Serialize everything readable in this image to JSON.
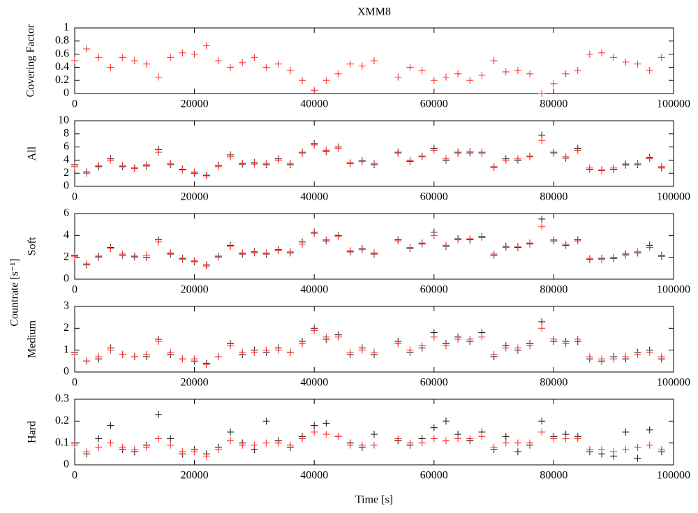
{
  "chart_data": [
    {
      "type": "scatter",
      "title": "XMM8",
      "ylabel": "Covering Factor",
      "x": [
        0,
        2000,
        4000,
        6000,
        8000,
        10000,
        12000,
        14000,
        16000,
        18000,
        20000,
        22000,
        24000,
        26000,
        28000,
        30000,
        32000,
        34000,
        36000,
        38000,
        40000,
        42000,
        44000,
        46000,
        48000,
        50000,
        54000,
        56000,
        58000,
        60000,
        62000,
        64000,
        66000,
        68000,
        70000,
        72000,
        74000,
        76000,
        78000,
        80000,
        82000,
        84000,
        86000,
        88000,
        90000,
        92000,
        94000,
        96000,
        98000
      ],
      "series": [
        {
          "color": "#ff3333",
          "values": [
            0.5,
            0.68,
            0.55,
            0.4,
            0.55,
            0.5,
            0.45,
            0.25,
            0.55,
            0.62,
            0.6,
            0.73,
            0.5,
            0.4,
            0.47,
            0.55,
            0.4,
            0.45,
            0.35,
            0.2,
            0.05,
            0.2,
            0.3,
            0.45,
            0.42,
            0.5,
            0.25,
            0.4,
            0.35,
            0.2,
            0.25,
            0.3,
            0.2,
            0.28,
            0.5,
            0.33,
            0.35,
            0.3,
            0.0,
            0.15,
            0.3,
            0.35,
            0.6,
            0.62,
            0.55,
            0.48,
            0.45,
            0.35,
            0.55
          ]
        }
      ],
      "xlim": [
        0,
        100000
      ],
      "xticks": [
        0,
        20000,
        40000,
        60000,
        80000,
        100000
      ],
      "ylim": [
        0,
        1
      ],
      "yticks": [
        0,
        0.2,
        0.4,
        0.6,
        0.8,
        1
      ]
    },
    {
      "type": "scatter",
      "ylabel": "All",
      "x": [
        0,
        2000,
        4000,
        6000,
        8000,
        10000,
        12000,
        14000,
        16000,
        18000,
        20000,
        22000,
        24000,
        26000,
        28000,
        30000,
        32000,
        34000,
        36000,
        38000,
        40000,
        42000,
        44000,
        46000,
        48000,
        50000,
        54000,
        56000,
        58000,
        60000,
        62000,
        64000,
        66000,
        68000,
        70000,
        72000,
        74000,
        76000,
        78000,
        80000,
        82000,
        84000,
        86000,
        88000,
        90000,
        92000,
        94000,
        96000,
        98000
      ],
      "series": [
        {
          "color": "#222222",
          "values": [
            3.3,
            2.2,
            3.0,
            4.2,
            3.0,
            2.8,
            3.1,
            5.6,
            3.3,
            2.6,
            2.0,
            1.7,
            3.2,
            4.8,
            3.4,
            3.6,
            3.3,
            4.2,
            3.3,
            5.2,
            6.5,
            5.3,
            6.0,
            3.5,
            3.9,
            3.3,
            5.2,
            3.8,
            4.6,
            5.8,
            4.0,
            5.2,
            5.1,
            5.2,
            2.9,
            4.2,
            4.0,
            4.6,
            7.8,
            5.2,
            4.3,
            5.8,
            2.6,
            2.5,
            2.6,
            3.4,
            3.3,
            4.4,
            2.8
          ]
        },
        {
          "color": "#ff3333",
          "values": [
            3.0,
            2.0,
            3.2,
            4.0,
            3.2,
            2.7,
            3.3,
            5.2,
            3.5,
            2.5,
            2.2,
            1.6,
            3.0,
            4.5,
            3.5,
            3.4,
            3.5,
            4.0,
            3.5,
            5.0,
            6.3,
            5.5,
            5.8,
            3.6,
            3.8,
            3.5,
            5.0,
            4.0,
            4.5,
            5.5,
            4.2,
            5.0,
            5.3,
            5.0,
            3.0,
            4.0,
            4.2,
            4.5,
            7.0,
            5.0,
            4.5,
            5.5,
            2.8,
            2.4,
            2.8,
            3.2,
            3.5,
            4.2,
            3.0
          ]
        }
      ],
      "xlim": [
        0,
        100000
      ],
      "xticks": [
        0,
        20000,
        40000,
        60000,
        80000,
        100000
      ],
      "ylim": [
        0,
        10
      ],
      "yticks": [
        0,
        2,
        4,
        6,
        8,
        10
      ]
    },
    {
      "type": "scatter",
      "ylabel": "Soft",
      "shared_ylabel": "Countrate [s⁻¹]",
      "x": [
        0,
        2000,
        4000,
        6000,
        8000,
        10000,
        12000,
        14000,
        16000,
        18000,
        20000,
        22000,
        24000,
        26000,
        28000,
        30000,
        32000,
        34000,
        36000,
        38000,
        40000,
        42000,
        44000,
        46000,
        48000,
        50000,
        54000,
        56000,
        58000,
        60000,
        62000,
        64000,
        66000,
        68000,
        70000,
        72000,
        74000,
        76000,
        78000,
        80000,
        82000,
        84000,
        86000,
        88000,
        90000,
        92000,
        94000,
        96000,
        98000
      ],
      "series": [
        {
          "color": "#222222",
          "values": [
            2.2,
            1.3,
            2.1,
            2.9,
            2.2,
            2.1,
            2.0,
            3.6,
            2.3,
            1.9,
            1.6,
            1.3,
            2.1,
            3.1,
            2.3,
            2.5,
            2.3,
            2.7,
            2.4,
            3.4,
            4.3,
            3.5,
            4.0,
            2.5,
            2.8,
            2.3,
            3.6,
            2.8,
            3.3,
            4.3,
            3.0,
            3.7,
            3.6,
            3.9,
            2.2,
            3.0,
            2.9,
            3.3,
            5.5,
            3.5,
            3.1,
            3.6,
            1.8,
            1.9,
            1.9,
            2.3,
            2.4,
            3.1,
            2.1
          ]
        },
        {
          "color": "#ff3333",
          "values": [
            2.1,
            1.4,
            2.0,
            2.8,
            2.3,
            2.0,
            2.2,
            3.4,
            2.4,
            1.8,
            1.7,
            1.2,
            2.0,
            3.0,
            2.4,
            2.4,
            2.4,
            2.6,
            2.5,
            3.2,
            4.2,
            3.6,
            3.9,
            2.6,
            2.7,
            2.4,
            3.5,
            2.9,
            3.2,
            4.0,
            3.1,
            3.6,
            3.7,
            3.8,
            2.3,
            2.9,
            3.0,
            3.2,
            4.8,
            3.6,
            3.2,
            3.5,
            1.9,
            1.8,
            2.0,
            2.2,
            2.5,
            2.9,
            2.2
          ]
        }
      ],
      "xlim": [
        0,
        100000
      ],
      "xticks": [
        0,
        20000,
        40000,
        60000,
        80000,
        100000
      ],
      "ylim": [
        0,
        6
      ],
      "yticks": [
        0,
        2,
        4,
        6
      ]
    },
    {
      "type": "scatter",
      "ylabel": "Medium",
      "x": [
        0,
        2000,
        4000,
        6000,
        8000,
        10000,
        12000,
        14000,
        16000,
        18000,
        20000,
        22000,
        24000,
        26000,
        28000,
        30000,
        32000,
        34000,
        36000,
        38000,
        40000,
        42000,
        44000,
        46000,
        48000,
        50000,
        54000,
        56000,
        58000,
        60000,
        62000,
        64000,
        66000,
        68000,
        70000,
        72000,
        74000,
        76000,
        78000,
        80000,
        82000,
        84000,
        86000,
        88000,
        90000,
        92000,
        94000,
        96000,
        98000
      ],
      "series": [
        {
          "color": "#222222",
          "values": [
            0.9,
            0.5,
            0.6,
            1.1,
            0.8,
            0.7,
            0.7,
            1.5,
            0.8,
            0.6,
            0.5,
            0.4,
            0.7,
            1.3,
            0.8,
            1.0,
            0.9,
            1.1,
            0.9,
            1.4,
            2.0,
            1.5,
            1.7,
            0.8,
            1.1,
            0.8,
            1.4,
            0.9,
            1.1,
            1.8,
            1.3,
            1.6,
            1.4,
            1.8,
            0.7,
            1.2,
            1.0,
            1.3,
            2.3,
            1.4,
            1.4,
            1.4,
            0.6,
            0.5,
            0.7,
            0.6,
            0.9,
            1.0,
            0.6
          ]
        },
        {
          "color": "#ff3333",
          "values": [
            0.8,
            0.5,
            0.7,
            1.0,
            0.8,
            0.7,
            0.8,
            1.4,
            0.9,
            0.6,
            0.6,
            0.35,
            0.7,
            1.2,
            0.9,
            0.9,
            1.0,
            1.0,
            0.9,
            1.3,
            1.9,
            1.6,
            1.6,
            0.9,
            1.0,
            0.9,
            1.3,
            1.0,
            1.2,
            1.6,
            1.2,
            1.5,
            1.5,
            1.6,
            0.8,
            1.1,
            1.1,
            1.2,
            2.0,
            1.5,
            1.3,
            1.5,
            0.7,
            0.6,
            0.6,
            0.7,
            0.8,
            0.9,
            0.7
          ]
        }
      ],
      "xlim": [
        0,
        100000
      ],
      "xticks": [
        0,
        20000,
        40000,
        60000,
        80000,
        100000
      ],
      "ylim": [
        0,
        3
      ],
      "yticks": [
        0,
        1,
        2,
        3
      ]
    },
    {
      "type": "scatter",
      "ylabel": "Hard",
      "xlabel": "Time [s]",
      "x": [
        0,
        2000,
        4000,
        6000,
        8000,
        10000,
        12000,
        14000,
        16000,
        18000,
        20000,
        22000,
        24000,
        26000,
        28000,
        30000,
        32000,
        34000,
        36000,
        38000,
        40000,
        42000,
        44000,
        46000,
        48000,
        50000,
        54000,
        56000,
        58000,
        60000,
        62000,
        64000,
        66000,
        68000,
        70000,
        72000,
        74000,
        76000,
        78000,
        80000,
        82000,
        84000,
        86000,
        88000,
        90000,
        92000,
        94000,
        96000,
        98000
      ],
      "series": [
        {
          "color": "#222222",
          "values": [
            0.1,
            0.05,
            0.12,
            0.18,
            0.07,
            0.06,
            0.09,
            0.23,
            0.12,
            0.05,
            0.07,
            0.05,
            0.08,
            0.15,
            0.1,
            0.07,
            0.2,
            0.11,
            0.08,
            0.13,
            0.18,
            0.19,
            0.13,
            0.1,
            0.08,
            0.14,
            0.11,
            0.09,
            0.12,
            0.17,
            0.2,
            0.14,
            0.11,
            0.15,
            0.07,
            0.13,
            0.06,
            0.09,
            0.2,
            0.13,
            0.14,
            0.13,
            0.06,
            0.05,
            0.04,
            0.15,
            0.03,
            0.16,
            0.06
          ]
        },
        {
          "color": "#ff3333",
          "values": [
            0.09,
            0.06,
            0.08,
            0.1,
            0.08,
            0.07,
            0.08,
            0.12,
            0.09,
            0.06,
            0.06,
            0.04,
            0.07,
            0.11,
            0.09,
            0.09,
            0.1,
            0.1,
            0.09,
            0.12,
            0.15,
            0.14,
            0.13,
            0.09,
            0.09,
            0.09,
            0.12,
            0.1,
            0.1,
            0.12,
            0.11,
            0.12,
            0.12,
            0.13,
            0.08,
            0.1,
            0.1,
            0.1,
            0.15,
            0.12,
            0.12,
            0.12,
            0.07,
            0.07,
            0.06,
            0.07,
            0.08,
            0.09,
            0.07
          ]
        }
      ],
      "xlim": [
        0,
        100000
      ],
      "xticks": [
        0,
        20000,
        40000,
        60000,
        80000,
        100000
      ],
      "ylim": [
        0,
        0.3
      ],
      "yticks": [
        0,
        0.1,
        0.2,
        0.3
      ]
    }
  ]
}
